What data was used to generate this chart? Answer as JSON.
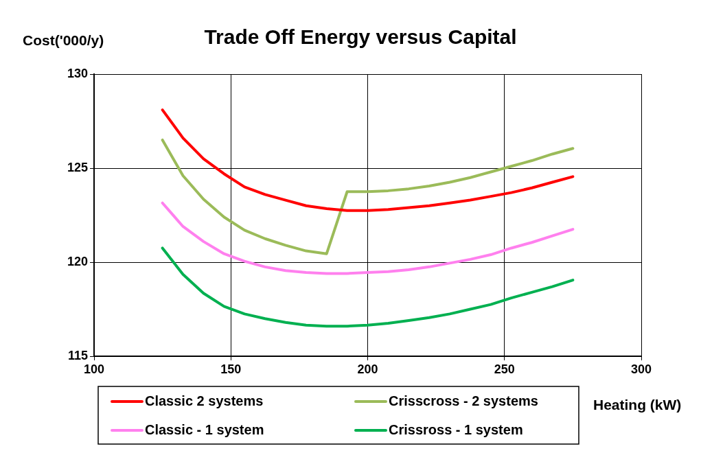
{
  "chart_data": {
    "type": "line",
    "title": "Trade Off Energy versus Capital",
    "xlabel": "Heating (kW)",
    "ylabel": "Cost('000/y)",
    "x": [
      125,
      132.5,
      140,
      147.5,
      155,
      162.5,
      170,
      177.5,
      185,
      192.5,
      200,
      207.5,
      215,
      222.5,
      230,
      237.5,
      245,
      252.5,
      260,
      267.5,
      275
    ],
    "xlim": [
      100,
      300
    ],
    "xticks": [
      100,
      150,
      200,
      250,
      300
    ],
    "ylim": [
      115,
      130
    ],
    "yticks": [
      115,
      120,
      125,
      130
    ],
    "grid": true,
    "legend": "bottom",
    "marker": "none",
    "line_style": "solid",
    "series": [
      {
        "name": "Classic 2 systems",
        "color": "#ff0000",
        "values": [
          128.1,
          126.6,
          125.5,
          124.7,
          124.0,
          123.6,
          123.3,
          123.0,
          122.85,
          122.75,
          122.75,
          122.8,
          122.9,
          123.0,
          123.15,
          123.3,
          123.5,
          123.7,
          123.95,
          124.25,
          124.55
        ]
      },
      {
        "name": "Crisscross - 2 systems",
        "color": "#9bbb59",
        "values": [
          126.5,
          124.6,
          123.35,
          122.4,
          121.7,
          121.25,
          120.9,
          120.6,
          120.45,
          123.75,
          123.75,
          123.8,
          123.9,
          124.05,
          124.25,
          124.5,
          124.8,
          125.1,
          125.4,
          125.75,
          126.05
        ]
      },
      {
        "name": "Classic - 1 system",
        "color": "#ff80ee",
        "values": [
          123.15,
          121.9,
          121.1,
          120.45,
          120.05,
          119.75,
          119.55,
          119.45,
          119.4,
          119.4,
          119.45,
          119.5,
          119.6,
          119.75,
          119.95,
          120.15,
          120.4,
          120.75,
          121.05,
          121.4,
          121.75
        ]
      },
      {
        "name": "Crissross - 1 system",
        "color": "#00b050",
        "values": [
          120.75,
          119.35,
          118.35,
          117.65,
          117.25,
          117.0,
          116.8,
          116.65,
          116.6,
          116.6,
          116.65,
          116.75,
          116.9,
          117.05,
          117.25,
          117.5,
          117.75,
          118.1,
          118.4,
          118.7,
          119.05
        ]
      }
    ]
  }
}
